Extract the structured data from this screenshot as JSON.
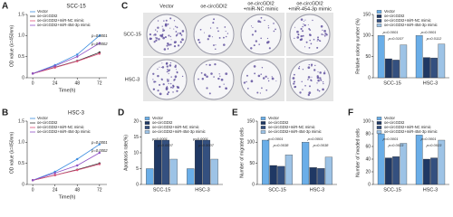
{
  "chart_data": [
    {
      "panel": "A",
      "type": "line",
      "title": "SCC-15",
      "y_label": "OD value (λ=450nm)",
      "x_label": "Time(h)",
      "x": [
        0,
        24,
        48,
        72
      ],
      "xlim": [
        -6,
        80
      ],
      "xticks": [
        0,
        24,
        48,
        72
      ],
      "ylim": [
        0,
        1.5
      ],
      "yticks": [
        0,
        {
          "value": 0.5,
          "label": "0.5"
        },
        {
          "value": 1,
          "label": "1.0"
        },
        {
          "value": 1.5,
          "label": "1.5"
        }
      ],
      "series": [
        {
          "name": "Vector",
          "color": "#3b8de0",
          "values": [
            0.1,
            0.3,
            0.55,
            1.0
          ]
        },
        {
          "name": "oe-circGDI2",
          "color": "#333333",
          "values": [
            0.1,
            0.25,
            0.4,
            0.6
          ]
        },
        {
          "name": "oe-circGDI2+miR-NC mimic",
          "color": "#e0507a",
          "values": [
            0.1,
            0.24,
            0.39,
            0.57
          ]
        },
        {
          "name": "oe-circGDI2+miR-454-3p mimic",
          "color": "#8e4fc4",
          "values": [
            0.1,
            0.28,
            0.5,
            0.82
          ]
        }
      ],
      "annotations": [
        "p=0.0001",
        "p=0.0002"
      ]
    },
    {
      "panel": "B",
      "type": "line",
      "title": "HSC-3",
      "y_label": "OD value (λ=450nm)",
      "x_label": "Time(h)",
      "x": [
        0,
        24,
        48,
        72
      ],
      "xlim": [
        -6,
        80
      ],
      "xticks": [
        0,
        24,
        48,
        72
      ],
      "ylim": [
        0,
        1.5
      ],
      "yticks": [
        0,
        {
          "value": 0.5,
          "label": "0.5"
        },
        {
          "value": 1,
          "label": "1.0"
        },
        {
          "value": 1.5,
          "label": "1.5"
        }
      ],
      "series": [
        {
          "name": "Vector",
          "color": "#3b8de0",
          "values": [
            0.1,
            0.3,
            0.6,
            0.95
          ]
        },
        {
          "name": "oe-circGDI2",
          "color": "#333333",
          "values": [
            0.1,
            0.22,
            0.35,
            0.5
          ]
        },
        {
          "name": "oe-circGDI2+miR-NC mimic",
          "color": "#e0507a",
          "values": [
            0.1,
            0.22,
            0.34,
            0.48
          ]
        },
        {
          "name": "oe-circGDI2+miR-454-3p mimic",
          "color": "#8e4fc4",
          "values": [
            0.1,
            0.27,
            0.45,
            0.75
          ]
        }
      ],
      "annotations": [
        "p=0.0001",
        "p=0.0002"
      ]
    },
    {
      "panel": "C",
      "type": "bar",
      "y_label": "Relative colony number (%)",
      "categories": [
        "SCC-15",
        "HSC-3"
      ],
      "ylim": [
        0,
        150
      ],
      "yticks": [
        0,
        50,
        100,
        150
      ],
      "series": [
        {
          "name": "Vector",
          "color": "#6aaee8",
          "values": [
            100,
            100
          ]
        },
        {
          "name": "oe-circGDI2",
          "color": "#1f3864",
          "values": [
            45,
            48
          ]
        },
        {
          "name": "oe-circGDI2+miR-NC mimic",
          "color": "#34507f",
          "values": [
            42,
            47
          ]
        },
        {
          "name": "oe-circGDI2+miR-454-3p mimic",
          "color": "#9dc3e6",
          "values": [
            78,
            80
          ]
        }
      ],
      "annotations": [
        "p=0.0001",
        "p=0.0107",
        "p=0.0001",
        "p=0.0112"
      ]
    },
    {
      "panel": "D",
      "type": "bar",
      "y_label": "Apoptosis rate(%)",
      "categories": [
        "SCC-15",
        "HSC-3"
      ],
      "ylim": [
        0,
        20
      ],
      "yticks": [
        0,
        5,
        10,
        15,
        20
      ],
      "series": [
        {
          "name": "Vector",
          "color": "#6aaee8",
          "values": [
            5,
            5
          ]
        },
        {
          "name": "oe-circGDI2",
          "color": "#1f3864",
          "values": [
            14,
            14
          ]
        },
        {
          "name": "oe-circGDI2+miR-NC mimic",
          "color": "#34507f",
          "values": [
            14,
            14
          ]
        },
        {
          "name": "oe-circGDI2+miR-454-3p mimic",
          "color": "#9dc3e6",
          "values": [
            8,
            8
          ]
        }
      ],
      "annotations": [
        "p<0.0001",
        "p=0.0007",
        "p<0.0001",
        "p=0.0007"
      ]
    },
    {
      "panel": "E",
      "type": "bar",
      "y_label": "Number of migrated cells",
      "categories": [
        "SCC-15",
        "HSC-3"
      ],
      "ylim": [
        0,
        150
      ],
      "yticks": [
        0,
        50,
        100,
        150
      ],
      "series": [
        {
          "name": "Vector",
          "color": "#6aaee8",
          "values": [
            105,
            100
          ]
        },
        {
          "name": "oe-circGDI2",
          "color": "#1f3864",
          "values": [
            45,
            40
          ]
        },
        {
          "name": "oe-circGDI2+miR-NC mimic",
          "color": "#34507f",
          "values": [
            43,
            38
          ]
        },
        {
          "name": "oe-circGDI2+miR-454-3p mimic",
          "color": "#9dc3e6",
          "values": [
            70,
            65
          ]
        }
      ],
      "annotations": [
        "p=0.0001",
        "p=0.0038",
        "p=0.0001",
        "p=0.0038"
      ]
    },
    {
      "panel": "F",
      "type": "bar",
      "y_label": "Number of invaded cells",
      "categories": [
        "SCC-15",
        "HSC-3"
      ],
      "ylim": [
        0,
        100
      ],
      "yticks": [
        0,
        20,
        40,
        60,
        80,
        100
      ],
      "series": [
        {
          "name": "Vector",
          "color": "#6aaee8",
          "values": [
            80,
            78
          ]
        },
        {
          "name": "oe-circGDI2",
          "color": "#1f3864",
          "values": [
            42,
            40
          ]
        },
        {
          "name": "oe-circGDI2+miR-NC mimic",
          "color": "#34507f",
          "values": [
            44,
            42
          ]
        },
        {
          "name": "oe-circGDI2+miR-454-3p mimic",
          "color": "#9dc3e6",
          "values": [
            65,
            70
          ]
        }
      ],
      "annotations": [
        "p=0.0001",
        "p=0.0023",
        "p=0.0001",
        "p=0.0023"
      ]
    }
  ],
  "images": {
    "columns": [
      [
        "Vector"
      ],
      [
        "oe-circGDI2"
      ],
      [
        "oe-circGDI2",
        "+miR-NC mimic"
      ],
      [
        "oe-circGDI2",
        "+miR-454-3p mimic"
      ]
    ],
    "rows": [
      "SCC-15",
      "HSC-3"
    ]
  }
}
